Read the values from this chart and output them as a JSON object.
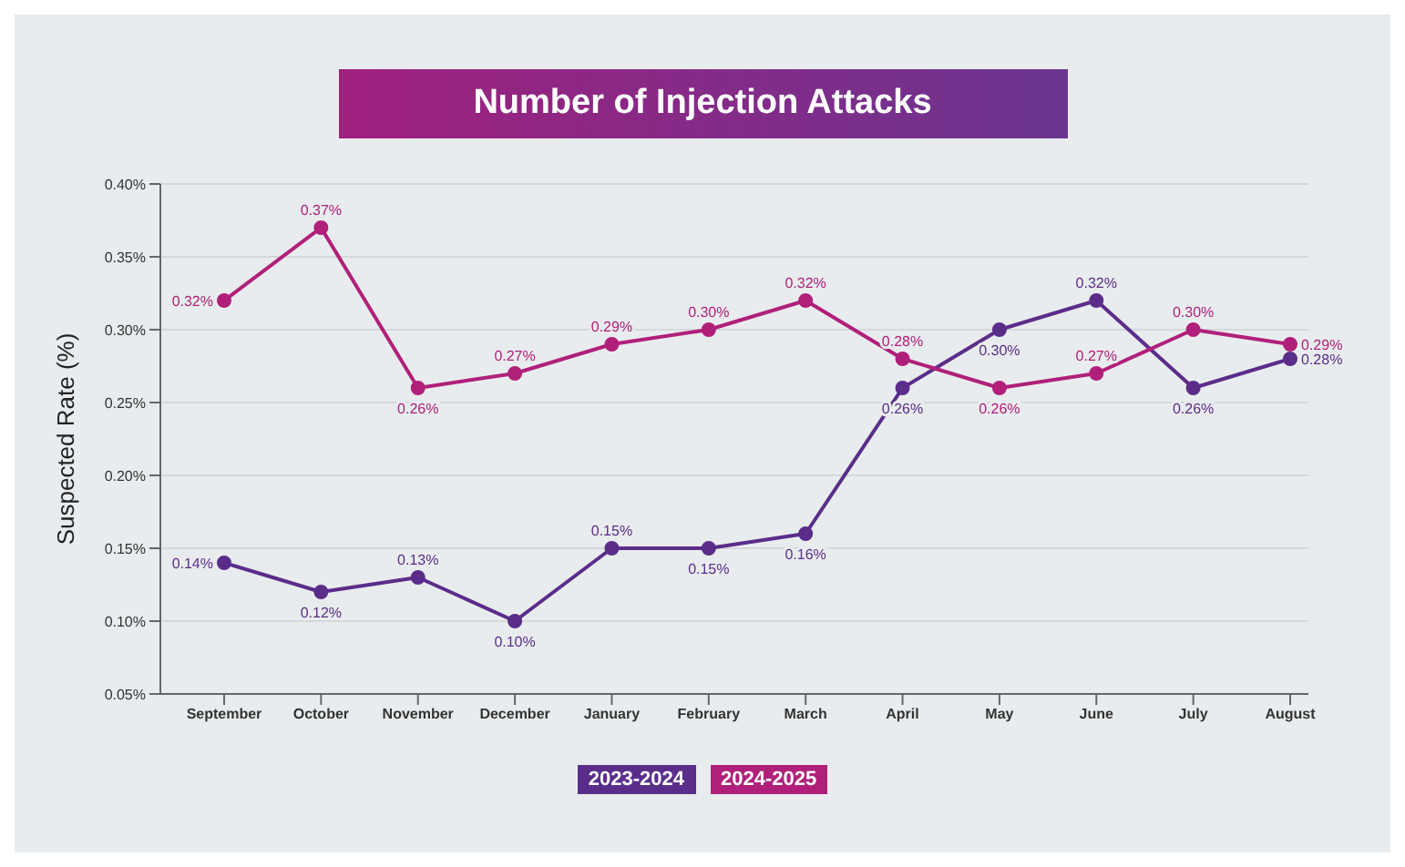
{
  "chart_data": {
    "type": "line",
    "title": "Number of Injection Attacks",
    "ylabel": "Suspected Rate (%)",
    "categories": [
      "September",
      "October",
      "November",
      "December",
      "January",
      "February",
      "March",
      "April",
      "May",
      "June",
      "July",
      "August"
    ],
    "series": [
      {
        "name": "2023-2024",
        "color": "#5b2d8a",
        "values": [
          0.14,
          0.12,
          0.13,
          0.1,
          0.15,
          0.15,
          0.16,
          0.26,
          0.3,
          0.32,
          0.26,
          0.28
        ],
        "value_labels": [
          "0.14%",
          "0.12%",
          "0.13%",
          "0.10%",
          "0.15%",
          "0.15%",
          "0.16%",
          "0.26%",
          "0.30%",
          "0.32%",
          "0.26%",
          "0.28%"
        ]
      },
      {
        "name": "2024-2025",
        "color": "#b0207a",
        "values": [
          0.32,
          0.37,
          0.26,
          0.27,
          0.29,
          0.3,
          0.32,
          0.28,
          0.26,
          0.27,
          0.3,
          0.29
        ],
        "value_labels": [
          "0.32%",
          "0.37%",
          "0.26%",
          "0.27%",
          "0.29%",
          "0.30%",
          "0.32%",
          "0.28%",
          "0.26%",
          "0.27%",
          "0.30%",
          "0.29%"
        ]
      }
    ],
    "ylim": [
      0.05,
      0.4
    ],
    "yticks": [
      {
        "value": 0.05,
        "label": "0.05%"
      },
      {
        "value": 0.1,
        "label": "0.10%"
      },
      {
        "value": 0.15,
        "label": "0.15%"
      },
      {
        "value": 0.2,
        "label": "0.20%"
      },
      {
        "value": 0.25,
        "label": "0.25%"
      },
      {
        "value": 0.3,
        "label": "0.30%"
      },
      {
        "value": 0.35,
        "label": "0.35%"
      },
      {
        "value": 0.4,
        "label": "0.40%"
      }
    ],
    "grid": "y",
    "legend": "bottom",
    "marker": "circle",
    "line_style": "solid"
  }
}
